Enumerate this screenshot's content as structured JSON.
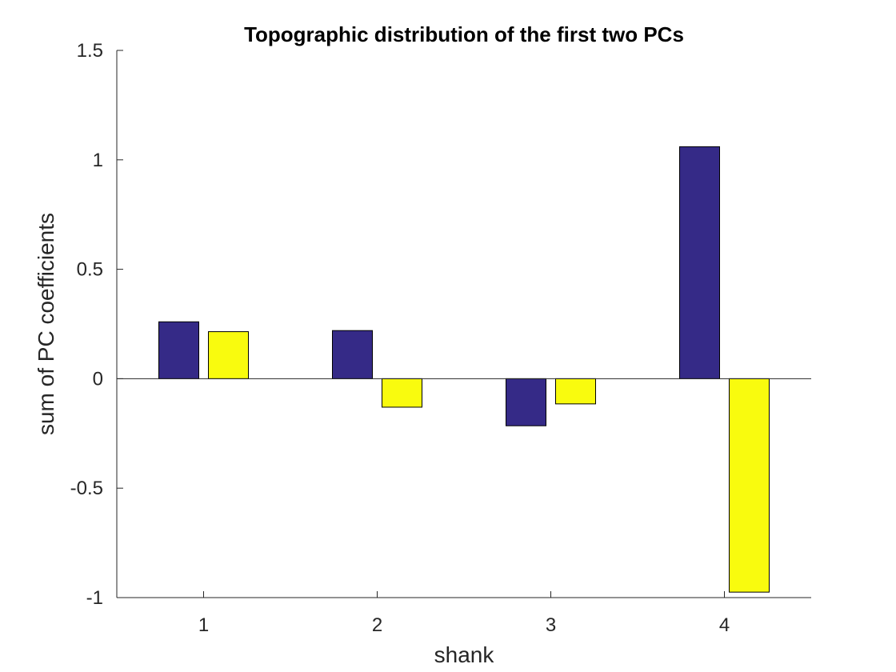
{
  "colors": {
    "series_1": "#352a87",
    "series_2": "#f9fb0e"
  },
  "chart_data": {
    "type": "bar",
    "title": "Topographic distribution of the first two PCs",
    "xlabel": "shank",
    "ylabel": "sum of PC coefficients",
    "categories": [
      "1",
      "2",
      "3",
      "4"
    ],
    "series": [
      {
        "values": [
          0.26,
          0.22,
          -0.215,
          1.06
        ]
      },
      {
        "values": [
          0.215,
          -0.13,
          -0.115,
          -0.975
        ]
      }
    ],
    "ylim": [
      -1,
      1.5
    ],
    "yticks": [
      -1,
      -0.5,
      0,
      0.5,
      1,
      1.5
    ],
    "ytick_labels": [
      "-1",
      "-0.5",
      "0",
      "0.5",
      "1",
      "1.5"
    ],
    "grid": false,
    "legend": "none"
  }
}
